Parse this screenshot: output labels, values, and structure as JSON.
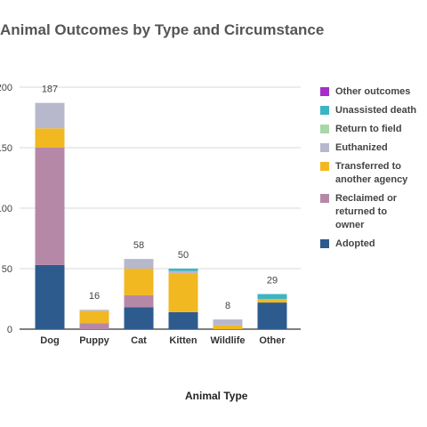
{
  "chart_data": {
    "type": "bar",
    "stacked": true,
    "title": "Animal Outcomes by Type and Circumstance",
    "xlabel": "Animal Type",
    "ylabel": "",
    "ylim": [
      0,
      200
    ],
    "yticks": [
      0,
      50,
      100,
      150,
      200
    ],
    "ytick_labels": [
      "0",
      "50",
      "100",
      "150",
      "200"
    ],
    "grid": true,
    "legend_position": "right",
    "categories": [
      "Dog",
      "Puppy",
      "Cat",
      "Kitten",
      "Wildlife",
      "Other"
    ],
    "totals": [
      187,
      16,
      58,
      50,
      8,
      29
    ],
    "series": [
      {
        "name": "Adopted",
        "color": "#2e5b8e",
        "values": [
          53,
          0,
          18,
          14,
          0,
          22
        ]
      },
      {
        "name": "Reclaimed or returned to owner",
        "color": "#b688a8",
        "values": [
          97,
          5,
          10,
          0,
          0,
          0
        ]
      },
      {
        "name": "Transferred to another agency",
        "color": "#f2b822",
        "values": [
          16,
          10,
          22,
          32,
          3,
          3
        ]
      },
      {
        "name": "Euthanized",
        "color": "#b8b8cc",
        "values": [
          21,
          1,
          8,
          2,
          5,
          0
        ]
      },
      {
        "name": "Return to field",
        "color": "#a8d8a8",
        "values": [
          0,
          0,
          0,
          0,
          0,
          0
        ]
      },
      {
        "name": "Unassisted death",
        "color": "#3bb5c4",
        "values": [
          0,
          0,
          0,
          2,
          0,
          4
        ]
      },
      {
        "name": "Other outcomes",
        "color": "#a42fc8",
        "values": [
          0,
          0,
          0,
          0,
          0,
          0
        ]
      }
    ],
    "legend_order": [
      "Other outcomes",
      "Unassisted death",
      "Return to field",
      "Euthanized",
      "Transferred to another agency",
      "Reclaimed or returned to owner",
      "Adopted"
    ]
  }
}
